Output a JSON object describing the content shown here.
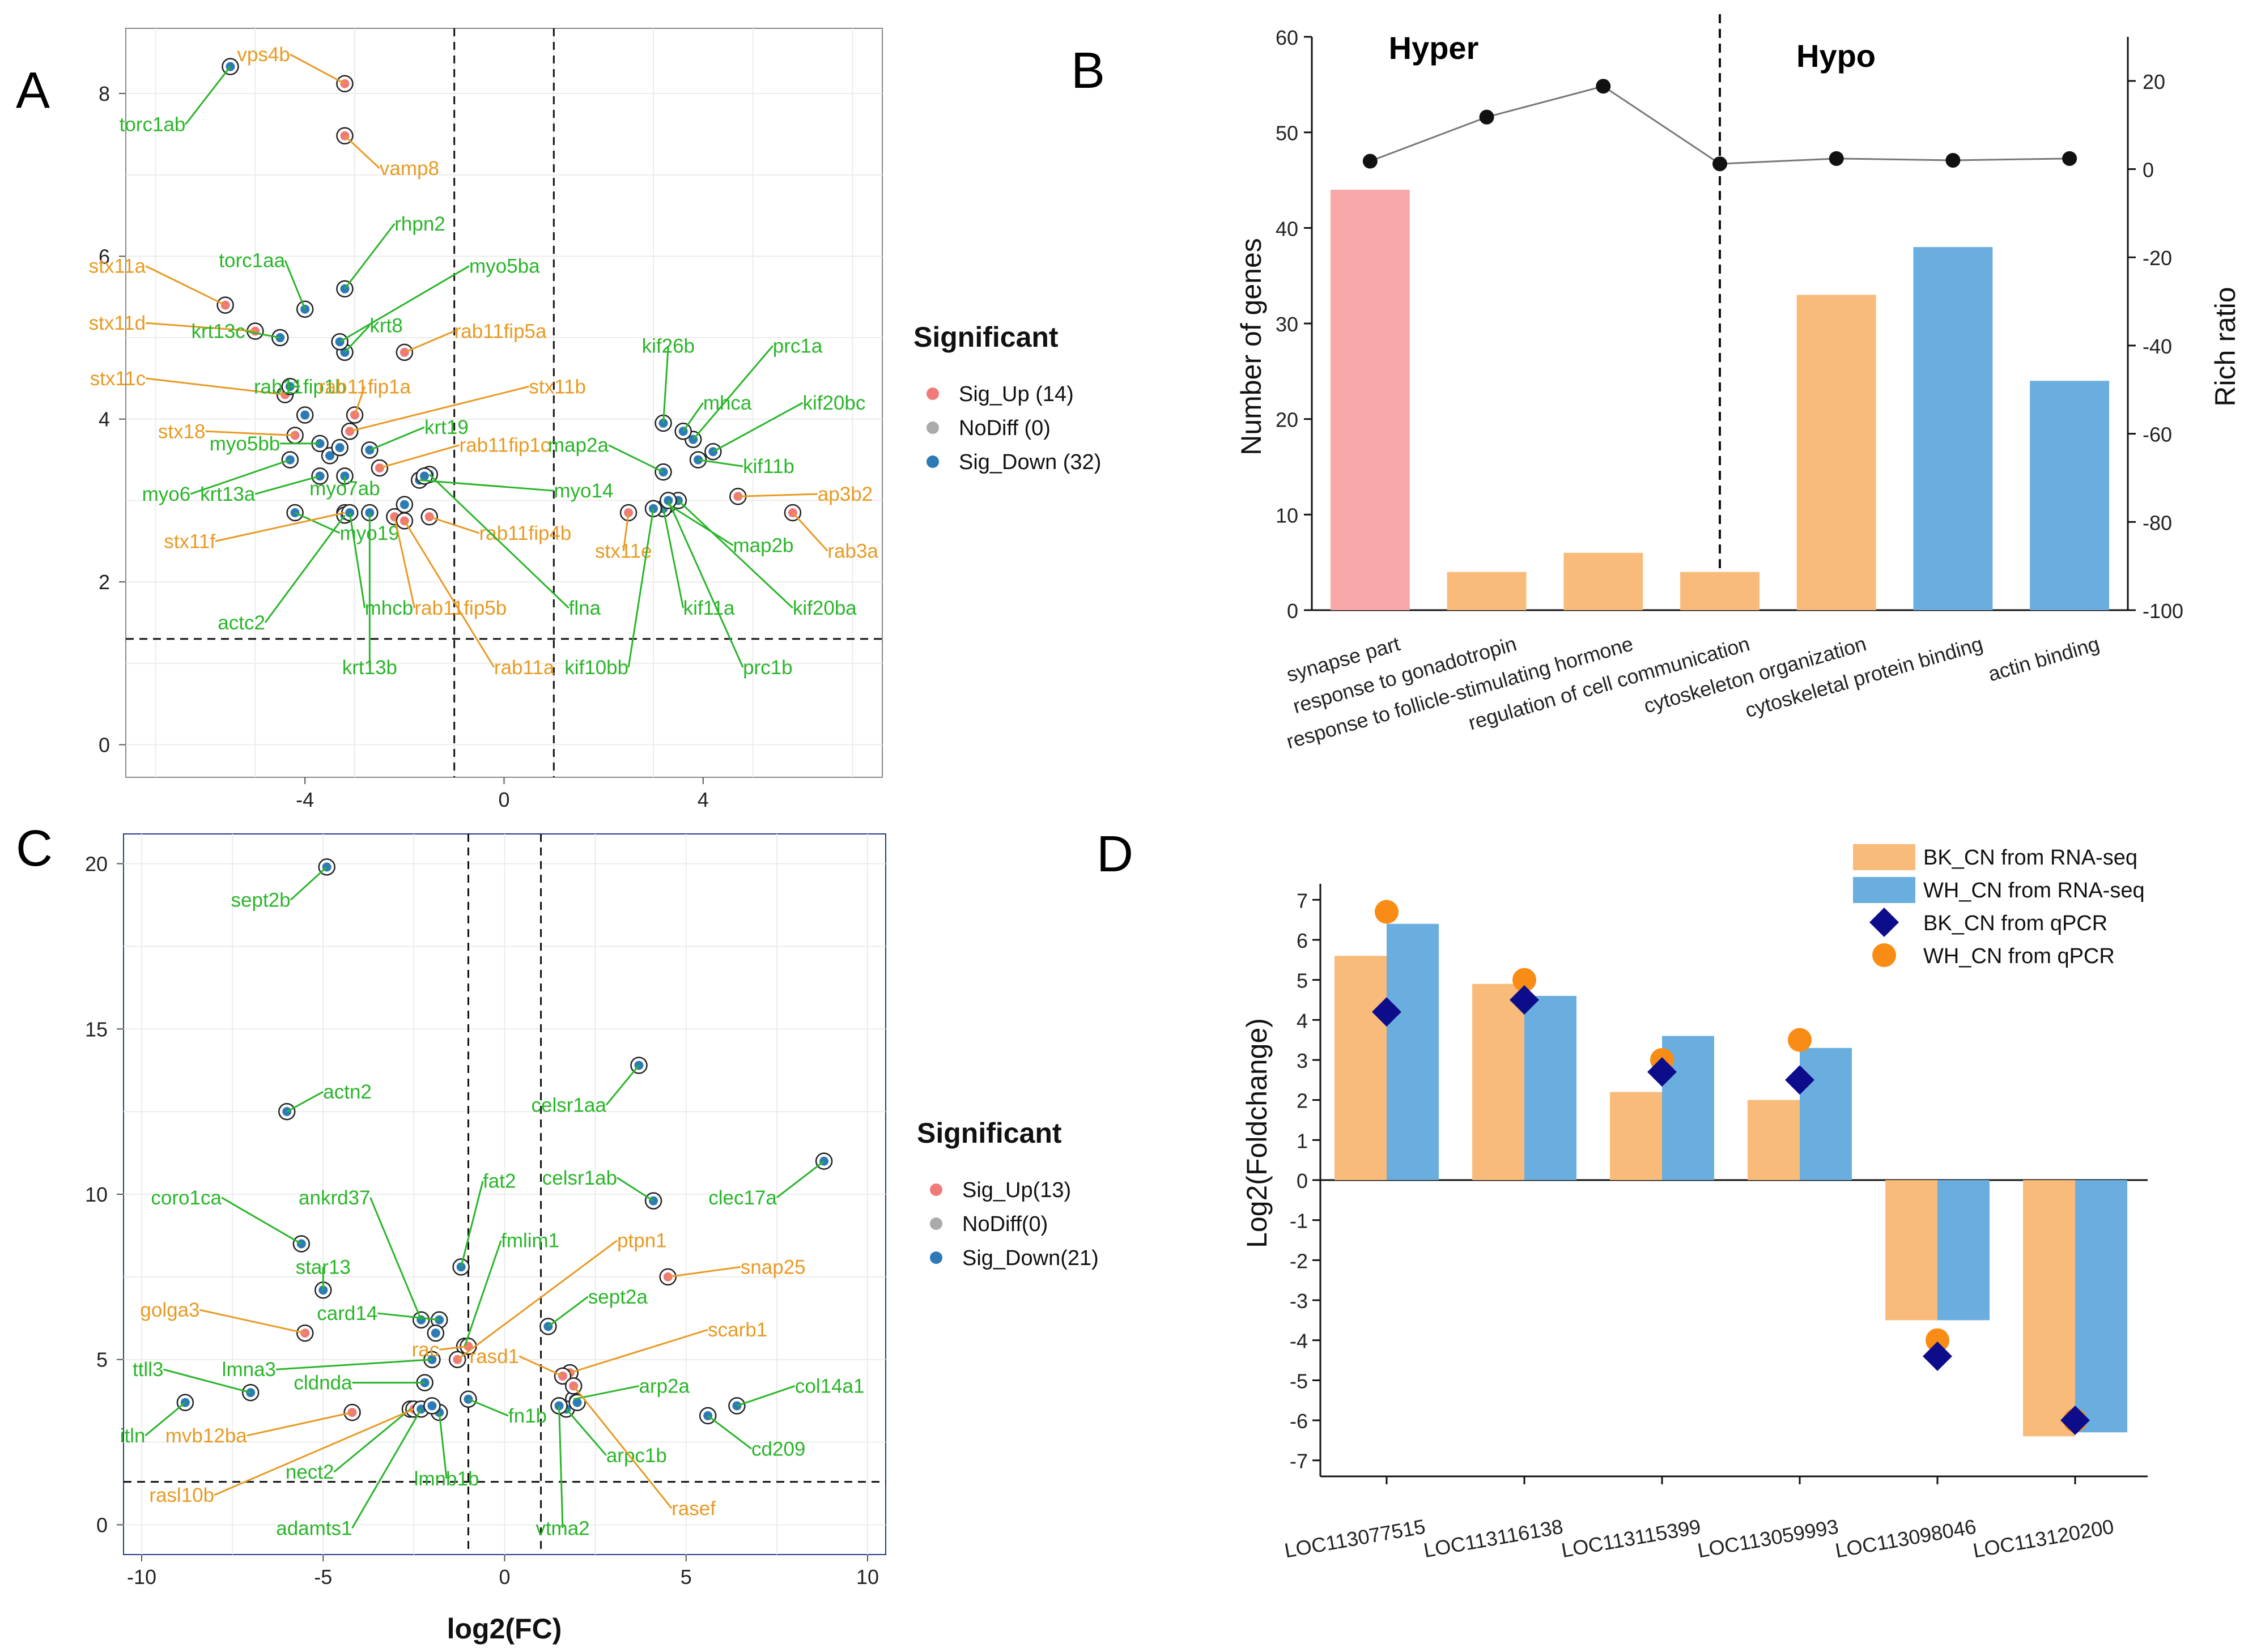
{
  "colors": {
    "green": "#2ab52a",
    "orange": "#e89a23",
    "up": "#f07a7a",
    "nodiff": "#aaaaaa",
    "down": "#2c7bb6",
    "pink": "#f8a8a8",
    "orange_bar": "#f9bb7a",
    "blue_bar": "#6aaedf",
    "navy": "#0d0d8c",
    "orange_dot": "#f98c14"
  },
  "chart_data": [
    {
      "panel": "A",
      "type": "scatter",
      "title": "",
      "xlabel": "",
      "ylabel": "",
      "xlim": [
        -7.6,
        7.6
      ],
      "ylim": [
        -0.4,
        8.8
      ],
      "xticks": [
        "-4",
        "0",
        "4"
      ],
      "yticks": [
        "0",
        "2",
        "4",
        "6",
        "8"
      ],
      "thresholds": {
        "x": [
          -1,
          1
        ],
        "y": 1.3
      },
      "legend": {
        "title": "Significant",
        "items": [
          "Sig_Up (14)",
          "NoDiff (0)",
          "Sig_Down (32)"
        ]
      },
      "labels": [
        {
          "text": "torc1ab",
          "px": -5.5,
          "py": 8.33,
          "tx": -6.4,
          "ty": 7.62,
          "c": "green"
        },
        {
          "text": "vps4b",
          "px": -3.2,
          "py": 8.12,
          "tx": -4.3,
          "ty": 8.48,
          "c": "orange"
        },
        {
          "text": "vamp8",
          "px": -3.2,
          "py": 7.48,
          "tx": -2.5,
          "ty": 7.08,
          "c": "orange"
        },
        {
          "text": "rhpn2",
          "px": -3.2,
          "py": 5.6,
          "tx": -2.2,
          "ty": 6.4,
          "c": "green"
        },
        {
          "text": "torc1aa",
          "px": -4.0,
          "py": 5.35,
          "tx": -4.4,
          "ty": 5.95,
          "c": "green"
        },
        {
          "text": "stx11a",
          "px": -5.6,
          "py": 5.4,
          "tx": -7.2,
          "ty": 5.88,
          "c": "orange"
        },
        {
          "text": "stx11d",
          "px": -5.0,
          "py": 5.08,
          "tx": -7.2,
          "ty": 5.18,
          "c": "orange"
        },
        {
          "text": "krt13c",
          "px": -4.5,
          "py": 5.0,
          "tx": -5.2,
          "ty": 5.08,
          "c": "green"
        },
        {
          "text": "krt8",
          "px": -3.2,
          "py": 4.82,
          "tx": -2.7,
          "ty": 5.15,
          "c": "green"
        },
        {
          "text": "myo5ba",
          "px": -3.3,
          "py": 4.95,
          "tx": -0.7,
          "ty": 5.88,
          "c": "green"
        },
        {
          "text": "rab11fip5a",
          "px": -2.0,
          "py": 4.82,
          "tx": -1.0,
          "ty": 5.08,
          "c": "orange"
        },
        {
          "text": "stx11c",
          "px": -4.4,
          "py": 4.3,
          "tx": -7.2,
          "ty": 4.5,
          "c": "orange"
        },
        {
          "text": "rab11fip1b",
          "px": -4.3,
          "py": 4.4,
          "tx": -4.1,
          "ty": 4.4,
          "c": "green"
        },
        {
          "text": "rab11fip1a",
          "px": -3.0,
          "py": 4.05,
          "tx": -2.8,
          "ty": 4.4,
          "c": "orange"
        },
        {
          "text": "stx11b",
          "px": -3.1,
          "py": 3.85,
          "tx": 0.5,
          "ty": 4.4,
          "c": "orange"
        },
        {
          "text": "stx18",
          "px": -4.2,
          "py": 3.8,
          "tx": -6.0,
          "ty": 3.85,
          "c": "orange"
        },
        {
          "text": "myo5bb",
          "px": -3.7,
          "py": 3.7,
          "tx": -4.5,
          "ty": 3.7,
          "c": "green"
        },
        {
          "text": "krt19",
          "px": -2.7,
          "py": 3.62,
          "tx": -1.6,
          "ty": 3.9,
          "c": "green"
        },
        {
          "text": "rab11fip1c",
          "px": -2.5,
          "py": 3.4,
          "tx": -0.9,
          "ty": 3.68,
          "c": "orange"
        },
        {
          "text": "myo6",
          "px": -4.3,
          "py": 3.5,
          "tx": -6.3,
          "ty": 3.08,
          "c": "green"
        },
        {
          "text": "krt13a",
          "px": -3.7,
          "py": 3.3,
          "tx": -5.0,
          "ty": 3.08,
          "c": "green"
        },
        {
          "text": "myo7ab",
          "px": -3.2,
          "py": 3.3,
          "tx": -3.2,
          "ty": 3.15,
          "c": "green"
        },
        {
          "text": "myo14",
          "px": -1.7,
          "py": 3.25,
          "tx": 1.0,
          "ty": 3.12,
          "c": "green"
        },
        {
          "text": "myo19",
          "px": -4.2,
          "py": 2.85,
          "tx": -3.3,
          "ty": 2.6,
          "c": "green"
        },
        {
          "text": "stx11f",
          "px": -3.2,
          "py": 2.85,
          "tx": -5.8,
          "ty": 2.5,
          "c": "orange"
        },
        {
          "text": "rab11fip4b",
          "px": -1.5,
          "py": 2.8,
          "tx": -0.5,
          "ty": 2.6,
          "c": "orange"
        },
        {
          "text": "actc2",
          "px": -3.2,
          "py": 2.82,
          "tx": -4.8,
          "ty": 1.5,
          "c": "green"
        },
        {
          "text": "mhcb",
          "px": -3.1,
          "py": 2.85,
          "tx": -2.8,
          "ty": 1.68,
          "c": "green"
        },
        {
          "text": "rab11fip5b",
          "px": -2.2,
          "py": 2.8,
          "tx": -1.8,
          "ty": 1.68,
          "c": "orange"
        },
        {
          "text": "flna",
          "px": -1.5,
          "py": 3.32,
          "tx": 1.3,
          "ty": 1.68,
          "c": "green"
        },
        {
          "text": "krt13b",
          "px": -2.7,
          "py": 2.85,
          "tx": -2.7,
          "ty": 0.95,
          "c": "green"
        },
        {
          "text": "rab11a",
          "px": -2.0,
          "py": 2.75,
          "tx": -0.2,
          "ty": 0.95,
          "c": "orange"
        },
        {
          "text": "kif26b",
          "px": 3.2,
          "py": 3.95,
          "tx": 3.3,
          "ty": 4.9,
          "c": "green"
        },
        {
          "text": "prc1a",
          "px": 3.8,
          "py": 3.75,
          "tx": 5.4,
          "ty": 4.9,
          "c": "green"
        },
        {
          "text": "mhca",
          "px": 3.6,
          "py": 3.85,
          "tx": 4.0,
          "ty": 4.2,
          "c": "green"
        },
        {
          "text": "kif20bc",
          "px": 4.2,
          "py": 3.6,
          "tx": 6.0,
          "ty": 4.2,
          "c": "green"
        },
        {
          "text": "map2a",
          "px": 3.2,
          "py": 3.35,
          "tx": 2.1,
          "ty": 3.68,
          "c": "green"
        },
        {
          "text": "kif11b",
          "px": 3.9,
          "py": 3.5,
          "tx": 4.8,
          "ty": 3.42,
          "c": "green"
        },
        {
          "text": "ap3b2",
          "px": 4.7,
          "py": 3.05,
          "tx": 6.3,
          "ty": 3.08,
          "c": "orange"
        },
        {
          "text": "stx11e",
          "px": 2.5,
          "py": 2.85,
          "tx": 2.4,
          "ty": 2.38,
          "c": "orange"
        },
        {
          "text": "map2b",
          "px": 3.3,
          "py": 2.95,
          "tx": 4.6,
          "ty": 2.45,
          "c": "green"
        },
        {
          "text": "rab3a",
          "px": 5.8,
          "py": 2.85,
          "tx": 6.5,
          "ty": 2.38,
          "c": "orange"
        },
        {
          "text": "kif11a",
          "px": 3.2,
          "py": 2.9,
          "tx": 3.6,
          "ty": 1.68,
          "c": "green"
        },
        {
          "text": "kif20ba",
          "px": 3.5,
          "py": 3.0,
          "tx": 5.8,
          "ty": 1.68,
          "c": "green"
        },
        {
          "text": "kif10bb",
          "px": 3.0,
          "py": 2.9,
          "tx": 2.5,
          "ty": 0.95,
          "c": "green"
        },
        {
          "text": "prc1b",
          "px": 3.3,
          "py": 3.0,
          "tx": 4.8,
          "ty": 0.95,
          "c": "green"
        }
      ],
      "extra_points": [
        [
          -4.0,
          4.05
        ],
        [
          -3.5,
          3.55
        ],
        [
          -3.3,
          3.65
        ],
        [
          -2.0,
          2.95
        ],
        [
          -1.6,
          3.3
        ]
      ]
    },
    {
      "panel": "B",
      "type": "bar",
      "title": "",
      "xlabel": "",
      "ylabel": "Number of genes",
      "y2label": "Rich ratio",
      "ylim": [
        0,
        60
      ],
      "y2lim": [
        -100,
        30
      ],
      "yticks": [
        "0",
        "10",
        "20",
        "30",
        "40",
        "50",
        "60"
      ],
      "y2ticks": [
        "-100",
        "-80",
        "-60",
        "-40",
        "-20",
        "0",
        "20"
      ],
      "groups": [
        "Hyper",
        "Hypo"
      ],
      "categories": [
        "synapse part",
        "response to gonadotropin",
        "response to follicle-stimulating hormone",
        "regulation of cell communication",
        "cytoskeleton organization",
        "cytoskeletal protein binding",
        "actin binding"
      ],
      "values": [
        44,
        4,
        6,
        4,
        33,
        38,
        24
      ],
      "bar_colors": [
        "pink",
        "orange_bar",
        "orange_bar",
        "orange_bar",
        "orange_bar",
        "blue_bar",
        "blue_bar"
      ],
      "rich_ratio": [
        1.8,
        11.8,
        18.8,
        1.2,
        2.4,
        2.0,
        2.4
      ]
    },
    {
      "panel": "C",
      "type": "scatter",
      "title": "",
      "xlabel": "log2(FC)",
      "ylabel": "",
      "xlim": [
        -10.5,
        10.5
      ],
      "ylim": [
        -0.9,
        20.9
      ],
      "xticks": [
        "-10",
        "-5",
        "0",
        "5",
        "10"
      ],
      "yticks": [
        "0",
        "5",
        "10",
        "15",
        "20"
      ],
      "thresholds": {
        "x": [
          -1,
          1
        ],
        "y": 1.3
      },
      "legend": {
        "title": "Significant",
        "items": [
          "Sig_Up(13)",
          "NoDiff(0)",
          "Sig_Down(21)"
        ]
      },
      "labels": [
        {
          "text": "sept2b",
          "px": -4.9,
          "py": 19.9,
          "tx": -5.9,
          "ty": 18.9,
          "c": "green"
        },
        {
          "text": "actn2",
          "px": -6.0,
          "py": 12.5,
          "tx": -5.0,
          "ty": 13.1,
          "c": "green"
        },
        {
          "text": "celsr1aa",
          "px": 3.7,
          "py": 13.9,
          "tx": 2.8,
          "ty": 12.7,
          "c": "green"
        },
        {
          "text": "celsr1ab",
          "px": 4.1,
          "py": 9.8,
          "tx": 3.1,
          "ty": 10.5,
          "c": "green"
        },
        {
          "text": "clec17a",
          "px": 8.8,
          "py": 11.0,
          "tx": 7.5,
          "ty": 9.9,
          "c": "green"
        },
        {
          "text": "fat2",
          "px": -1.2,
          "py": 7.8,
          "tx": -0.6,
          "ty": 10.4,
          "c": "green"
        },
        {
          "text": "ankrd37",
          "px": -2.3,
          "py": 6.2,
          "tx": -3.7,
          "ty": 9.9,
          "c": "green"
        },
        {
          "text": "coro1ca",
          "px": -5.6,
          "py": 8.5,
          "tx": -7.8,
          "ty": 9.9,
          "c": "green"
        },
        {
          "text": "fmlim1",
          "px": -1.1,
          "py": 5.4,
          "tx": -0.1,
          "ty": 8.6,
          "c": "green"
        },
        {
          "text": "ptpn1",
          "px": -1.3,
          "py": 5.0,
          "tx": 3.1,
          "ty": 8.6,
          "c": "orange"
        },
        {
          "text": "star13",
          "px": -5.0,
          "py": 7.1,
          "tx": -5.0,
          "ty": 7.8,
          "c": "green"
        },
        {
          "text": "snap25",
          "px": 4.5,
          "py": 7.5,
          "tx": 6.5,
          "ty": 7.8,
          "c": "orange"
        },
        {
          "text": "golga3",
          "px": -5.5,
          "py": 5.8,
          "tx": -8.4,
          "ty": 6.5,
          "c": "orange"
        },
        {
          "text": "card14",
          "px": -1.8,
          "py": 6.2,
          "tx": -3.5,
          "ty": 6.4,
          "c": "green"
        },
        {
          "text": "sept2a",
          "px": 1.2,
          "py": 6.0,
          "tx": 2.3,
          "ty": 6.9,
          "c": "green"
        },
        {
          "text": "rac",
          "px": -1.0,
          "py": 5.4,
          "tx": -1.8,
          "ty": 5.3,
          "c": "orange"
        },
        {
          "text": "scarb1",
          "px": 1.8,
          "py": 4.6,
          "tx": 5.6,
          "ty": 5.9,
          "c": "orange"
        },
        {
          "text": "rasd1",
          "px": 1.6,
          "py": 4.5,
          "tx": 0.4,
          "ty": 5.1,
          "c": "orange"
        },
        {
          "text": "lmna3",
          "px": -2.0,
          "py": 5.0,
          "tx": -6.3,
          "ty": 4.7,
          "c": "green"
        },
        {
          "text": "ttll3",
          "px": -7.0,
          "py": 4.0,
          "tx": -9.4,
          "ty": 4.7,
          "c": "green"
        },
        {
          "text": "cldnda",
          "px": -2.2,
          "py": 4.3,
          "tx": -4.2,
          "ty": 4.3,
          "c": "green"
        },
        {
          "text": "arp2a",
          "px": 1.9,
          "py": 3.8,
          "tx": 3.7,
          "ty": 4.2,
          "c": "green"
        },
        {
          "text": "col14a1",
          "px": 6.4,
          "py": 3.6,
          "tx": 8.0,
          "ty": 4.2,
          "c": "green"
        },
        {
          "text": "itln",
          "px": -8.8,
          "py": 3.7,
          "tx": -9.9,
          "ty": 2.7,
          "c": "green"
        },
        {
          "text": "mvb12ba",
          "px": -4.2,
          "py": 3.4,
          "tx": -7.1,
          "ty": 2.7,
          "c": "orange"
        },
        {
          "text": "fn1b",
          "px": -1.0,
          "py": 3.8,
          "tx": 0.1,
          "ty": 3.3,
          "c": "green"
        },
        {
          "text": "cd209",
          "px": 5.6,
          "py": 3.3,
          "tx": 6.8,
          "ty": 2.3,
          "c": "green"
        },
        {
          "text": "nect2",
          "px": -2.6,
          "py": 3.5,
          "tx": -4.7,
          "ty": 1.6,
          "c": "green"
        },
        {
          "text": "arpc1b",
          "px": 1.7,
          "py": 3.5,
          "tx": 2.8,
          "ty": 2.1,
          "c": "green"
        },
        {
          "text": "lmnb1b",
          "px": -1.8,
          "py": 3.4,
          "tx": -1.6,
          "ty": 1.4,
          "c": "green"
        },
        {
          "text": "rasl10b",
          "px": -2.5,
          "py": 3.5,
          "tx": -8.0,
          "ty": 0.9,
          "c": "orange"
        },
        {
          "text": "rasef",
          "px": 1.9,
          "py": 4.2,
          "tx": 4.6,
          "ty": 0.5,
          "c": "orange"
        },
        {
          "text": "adamts1",
          "px": -2.3,
          "py": 3.5,
          "tx": -4.2,
          "ty": -0.1,
          "c": "green"
        },
        {
          "text": "vtma2",
          "px": 1.5,
          "py": 3.6,
          "tx": 1.6,
          "ty": -0.1,
          "c": "green"
        }
      ],
      "extra_points": [
        [
          -1.9,
          5.8
        ],
        [
          -2.0,
          3.6
        ],
        [
          2.0,
          3.7
        ],
        [
          1.5,
          3.6
        ]
      ]
    },
    {
      "panel": "D",
      "type": "bar",
      "title": "",
      "xlabel": "",
      "ylabel": "Log2(Foldchange)",
      "ylim": [
        -7.4,
        7.4
      ],
      "yticks": [
        "7",
        "6",
        "5",
        "4",
        "3",
        "2",
        "1",
        "0",
        "-1",
        "-2",
        "-3",
        "-4",
        "-5",
        "-6",
        "-7"
      ],
      "categories": [
        "LOC113077515",
        "LOC113116138",
        "LOC113115399",
        "LOC113059993",
        "LOC113098046",
        "LOC113120200"
      ],
      "series": [
        {
          "name": "BK_CN from RNA-seq",
          "kind": "bar",
          "values": [
            5.6,
            4.9,
            2.2,
            2.0,
            -3.5,
            -6.4
          ]
        },
        {
          "name": "WH_CN from RNA-seq",
          "kind": "bar",
          "values": [
            6.4,
            4.6,
            3.6,
            3.3,
            -3.5,
            -6.3
          ]
        },
        {
          "name": "BK_CN from qPCR",
          "kind": "marker",
          "values": [
            4.2,
            4.5,
            2.7,
            2.5,
            -4.4,
            -6.0
          ]
        },
        {
          "name": "WH_CN from qPCR",
          "kind": "marker",
          "values": [
            6.7,
            5.0,
            3.0,
            3.5,
            -4.0,
            -6.0
          ]
        }
      ]
    }
  ]
}
